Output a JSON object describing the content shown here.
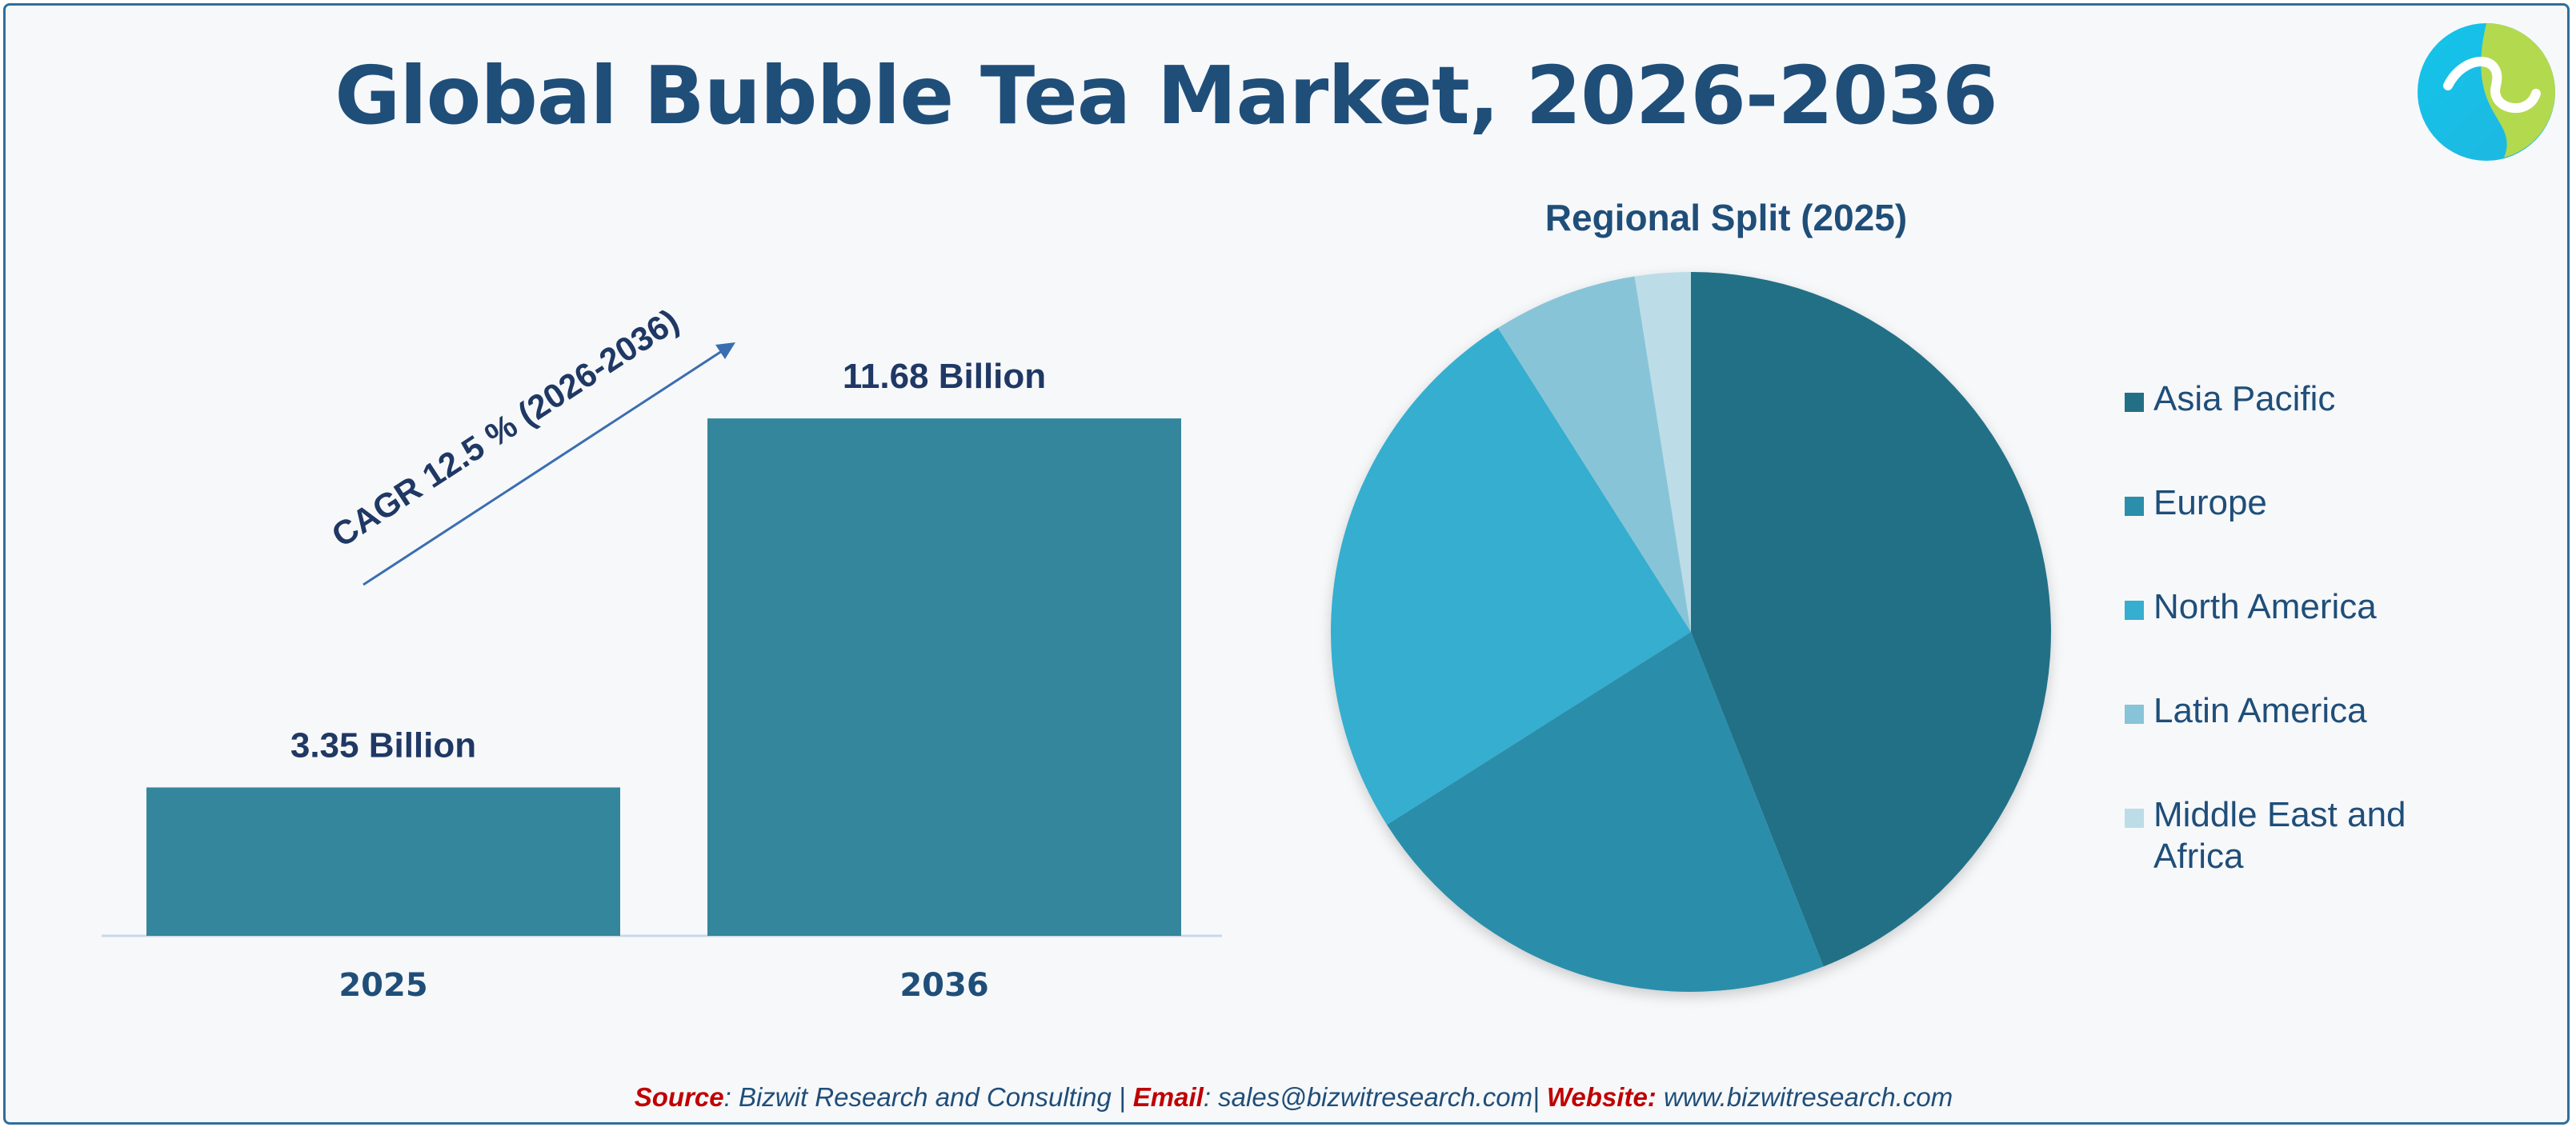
{
  "title": "Global Bubble Tea Market, 2026-2036",
  "cagr_label": "CAGR 12.5 % (2026-2036)",
  "chart_data": [
    {
      "type": "bar",
      "categories": [
        "2025",
        "2036"
      ],
      "values": [
        3.35,
        11.68
      ],
      "value_labels": [
        "3.35 Billion",
        "11.68 Billion"
      ],
      "ylim": [
        0,
        13
      ],
      "color": "#34869c"
    },
    {
      "type": "pie",
      "title": "Regional Split (2025)",
      "labels": [
        "Asia Pacific",
        "Europe",
        "North America",
        "Latin America",
        "Middle East and Africa"
      ],
      "values": [
        44,
        22,
        25,
        6.5,
        2.5
      ],
      "colors": [
        "#236f86",
        "#2b8eaa",
        "#36aed0",
        "#88c4d8",
        "#bcdde8"
      ],
      "legend_position": "right"
    }
  ],
  "source": {
    "source_label": "Source",
    "source_text": ": Bizwit Research and Consulting | ",
    "email_label": "Email",
    "email_text": ": sales@bizwitresearch.com| ",
    "website_label": "Website:",
    "website_text": " www.bizwitresearch.com"
  },
  "logo": {
    "icon": "company-logo-icon",
    "colors": [
      "#13c4ea",
      "#b3d94f"
    ]
  }
}
